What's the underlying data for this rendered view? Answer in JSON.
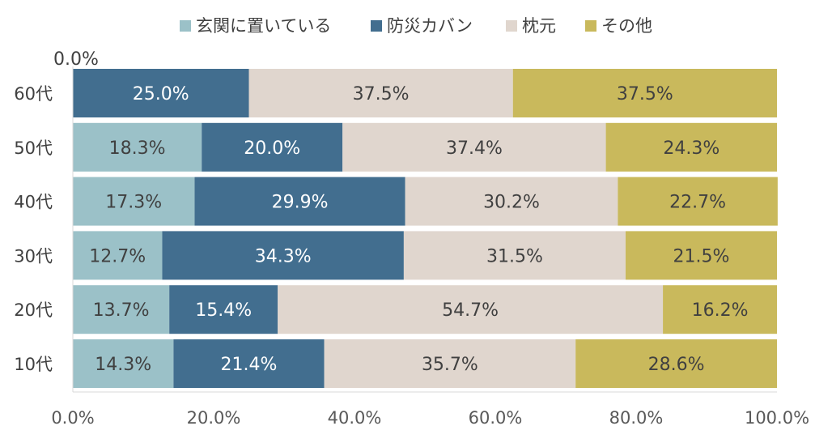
{
  "chart_data": {
    "type": "bar",
    "orientation": "horizontal",
    "stacked": "percent",
    "categories": [
      "60代",
      "50代",
      "40代",
      "30代",
      "20代",
      "10代"
    ],
    "series": [
      {
        "name": "玄関に置いている",
        "color": "#9bc1c8",
        "values": [
          0.0,
          18.3,
          17.3,
          12.7,
          13.7,
          14.3
        ],
        "labels": [
          "0.0%",
          "18.3%",
          "17.3%",
          "12.7%",
          "13.7%",
          "14.3%"
        ],
        "label_color": "#404040"
      },
      {
        "name": "防災カバン",
        "color": "#426e8f",
        "values": [
          25.0,
          20.0,
          29.9,
          34.3,
          15.4,
          21.4
        ],
        "labels": [
          "25.0%",
          "20.0%",
          "29.9%",
          "34.3%",
          "15.4%",
          "21.4%"
        ],
        "label_color": "#ffffff"
      },
      {
        "name": "枕元",
        "color": "#e0d6ce",
        "values": [
          37.5,
          37.4,
          30.2,
          31.5,
          54.7,
          35.7
        ],
        "labels": [
          "37.5%",
          "37.4%",
          "30.2%",
          "31.5%",
          "54.7%",
          "35.7%"
        ],
        "label_color": "#404040"
      },
      {
        "name": "その他",
        "color": "#c9b95c",
        "values": [
          37.5,
          24.3,
          22.7,
          21.5,
          16.2,
          28.6
        ],
        "labels": [
          "37.5%",
          "24.3%",
          "22.7%",
          "21.5%",
          "16.2%",
          "28.6%"
        ],
        "label_color": "#404040"
      }
    ],
    "xlim": [
      0,
      100
    ],
    "xticks": [
      "0.0%",
      "20.0%",
      "40.0%",
      "60.0%",
      "80.0%",
      "100.0%"
    ],
    "legend_position": "top",
    "grid": false
  }
}
